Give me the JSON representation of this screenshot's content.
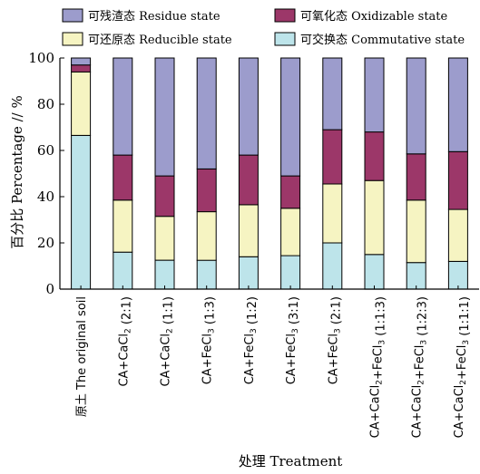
{
  "chart_data": {
    "type": "bar",
    "stacked": true,
    "xlabel": "处理 Treatment",
    "ylabel": "百分比 Percentage // %",
    "ylim": [
      0,
      100
    ],
    "yticks": [
      0,
      20,
      40,
      60,
      80,
      100
    ],
    "categories": [
      "原土 The original soil",
      "CA+CaCl2 (2:1)",
      "CA+CaCl2 (1:1)",
      "CA+FeCl3 (1:3)",
      "CA+FeCl3 (1:2)",
      "CA+FeCl3 (3:1)",
      "CA+FeCl3 (2:1)",
      "CA+CaCl2+FeCl3 (1:1:3)",
      "CA+CaCl2+FeCl3 (1:2:3)",
      "CA+CaCl2+FeCl3 (1:1:1)"
    ],
    "series": [
      {
        "name": "可交换态 Commutative state",
        "color": "#bde4ea",
        "values": [
          66.5,
          16,
          12.5,
          12.5,
          14,
          14.5,
          20,
          15,
          11.5,
          12
        ]
      },
      {
        "name": "可还原态 Reducible state",
        "color": "#f6f4c2",
        "values": [
          27.5,
          22.5,
          19,
          21,
          22.5,
          20.5,
          25.5,
          32,
          27,
          22.5
        ]
      },
      {
        "name": "可氧化态 Oxidizable state",
        "color": "#9c3769",
        "values": [
          3,
          19.5,
          17.5,
          18.5,
          21.5,
          14,
          23.5,
          21,
          20,
          25
        ]
      },
      {
        "name": "可残渣态 Residue state",
        "color": "#9c9ccc",
        "values": [
          3,
          42,
          51,
          48,
          42,
          51,
          31,
          32,
          41.5,
          40.5
        ]
      }
    ],
    "legend": {
      "placement": "top",
      "order": [
        "可残渣态 Residue state",
        "可氧化态 Oxidizable state",
        "可还原态 Reducible state",
        "可交换态 Commutative state"
      ]
    },
    "grid": false
  }
}
